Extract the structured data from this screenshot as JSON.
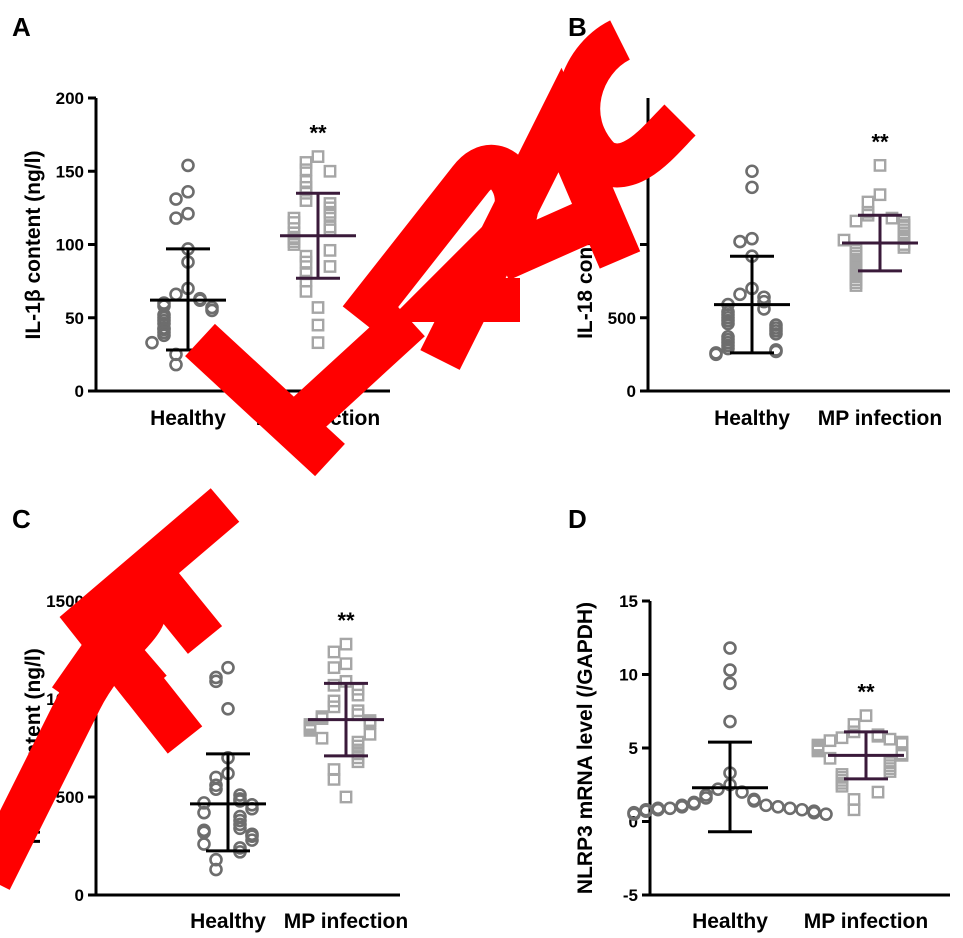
{
  "chart_data": [
    {
      "type": "scatter",
      "panel": "A",
      "ylabel": "IL-1β content  (ng/l)",
      "ylim": [
        0,
        200
      ],
      "yticks": [
        0,
        50,
        100,
        150,
        200
      ],
      "categories": [
        "Healthy",
        "MP infection"
      ],
      "series": [
        {
          "name": "Healthy",
          "marker": "circle",
          "color": "#6d6d6d",
          "values": [
            154,
            136,
            131,
            121,
            118,
            97,
            88,
            70,
            66,
            63,
            62,
            60,
            58,
            57,
            55,
            52,
            50,
            48,
            46,
            43,
            42,
            40,
            38,
            36,
            35,
            34,
            33,
            30,
            25,
            18
          ],
          "mean": 62,
          "sd_upper": 97,
          "sd_lower": 28
        },
        {
          "name": "MP infection",
          "marker": "square",
          "color": "#a6a6a6",
          "values": [
            160,
            156,
            151,
            150,
            143,
            139,
            135,
            130,
            128,
            125,
            122,
            120,
            118,
            115,
            112,
            110,
            108,
            105,
            104,
            102,
            100,
            96,
            92,
            88,
            85,
            80,
            75,
            68,
            57,
            45,
            33
          ],
          "mean": 106,
          "sd_upper": 135,
          "sd_lower": 77,
          "significance": "**"
        }
      ]
    },
    {
      "type": "scatter",
      "panel": "B",
      "ylabel": "IL-18 content  (ng/l)",
      "ylim": [
        0,
        2000
      ],
      "yticks": [
        0,
        500,
        1000,
        1500
      ],
      "categories": [
        "Healthy",
        "MP infection"
      ],
      "series": [
        {
          "name": "Healthy",
          "marker": "circle",
          "color": "#6d6d6d",
          "values": [
            1500,
            1390,
            1040,
            1020,
            920,
            700,
            660,
            640,
            610,
            590,
            560,
            540,
            520,
            500,
            480,
            460,
            450,
            430,
            410,
            390,
            370,
            350,
            330,
            310,
            290,
            280,
            270,
            260,
            250
          ],
          "mean": 590,
          "sd_upper": 920,
          "sd_lower": 260
        },
        {
          "name": "MP infection",
          "marker": "square",
          "color": "#a6a6a6",
          "values": [
            1540,
            1340,
            1290,
            1220,
            1200,
            1180,
            1160,
            1150,
            1130,
            1120,
            1100,
            1080,
            1060,
            1050,
            1040,
            1030,
            1000,
            980,
            960,
            940,
            920,
            900,
            880,
            860,
            840,
            820,
            800,
            780,
            760,
            740,
            720
          ],
          "mean": 1010,
          "sd_upper": 1200,
          "sd_lower": 820,
          "significance": "**"
        }
      ]
    },
    {
      "type": "scatter",
      "panel": "C",
      "ylabel": "TNF-α content  (ng/l)",
      "ylim": [
        0,
        1500
      ],
      "yticks": [
        0,
        500,
        1000,
        1500
      ],
      "categories": [
        "Healthy",
        "MP infection"
      ],
      "series": [
        {
          "name": "Healthy",
          "marker": "circle",
          "color": "#6d6d6d",
          "values": [
            1160,
            1110,
            1090,
            950,
            700,
            620,
            600,
            560,
            540,
            510,
            490,
            480,
            470,
            460,
            440,
            420,
            400,
            380,
            360,
            340,
            330,
            320,
            310,
            300,
            280,
            260,
            240,
            220,
            180,
            130
          ],
          "mean": 465,
          "sd_upper": 720,
          "sd_lower": 225
        },
        {
          "name": "MP infection",
          "marker": "square",
          "color": "#a6a6a6",
          "values": [
            1280,
            1240,
            1180,
            1160,
            1090,
            1070,
            1050,
            1020,
            990,
            960,
            940,
            920,
            910,
            900,
            890,
            880,
            870,
            860,
            850,
            840,
            820,
            800,
            780,
            760,
            740,
            720,
            700,
            680,
            640,
            590,
            500
          ],
          "mean": 895,
          "sd_upper": 1080,
          "sd_lower": 710,
          "significance": "**"
        }
      ]
    },
    {
      "type": "scatter",
      "panel": "D",
      "ylabel": "NLRP3 mRNA level (/GAPDH)",
      "ylim": [
        -5,
        15
      ],
      "yticks": [
        -5,
        0,
        5,
        10,
        15
      ],
      "categories": [
        "Healthy",
        "MP infection"
      ],
      "series": [
        {
          "name": "Healthy",
          "marker": "circle",
          "color": "#6d6d6d",
          "values": [
            11.8,
            10.3,
            9.4,
            6.8,
            3.3,
            2.5,
            2.2,
            2.0,
            1.8,
            1.6,
            1.5,
            1.4,
            1.3,
            1.2,
            1.1,
            1.1,
            1.0,
            1.0,
            0.9,
            0.9,
            0.9,
            0.8,
            0.8,
            0.8,
            0.7,
            0.7,
            0.6,
            0.6,
            0.5,
            0.5
          ],
          "mean": 2.3,
          "sd_upper": 5.4,
          "sd_lower": -0.7
        },
        {
          "name": "MP infection",
          "marker": "square",
          "color": "#a6a6a6",
          "values": [
            7.2,
            6.6,
            6.1,
            5.9,
            5.8,
            5.7,
            5.6,
            5.5,
            5.4,
            5.3,
            5.2,
            5.1,
            5.0,
            4.9,
            4.8,
            4.6,
            4.5,
            4.3,
            4.1,
            4.0,
            3.8,
            3.6,
            3.4,
            3.2,
            3.0,
            2.8,
            2.6,
            2.4,
            2.0,
            1.5,
            0.8
          ],
          "mean": 4.5,
          "sd_upper": 6.1,
          "sd_lower": 2.9,
          "significance": "**"
        }
      ]
    }
  ],
  "colors": {
    "healthy_marker": "#6d6d6d",
    "mp_marker": "#a6a6a6",
    "healthy_errorbar": "#000000",
    "mp_errorbar": "#3a1a3a",
    "watermark": "#ff0000"
  },
  "watermark_text": "RETRAC"
}
